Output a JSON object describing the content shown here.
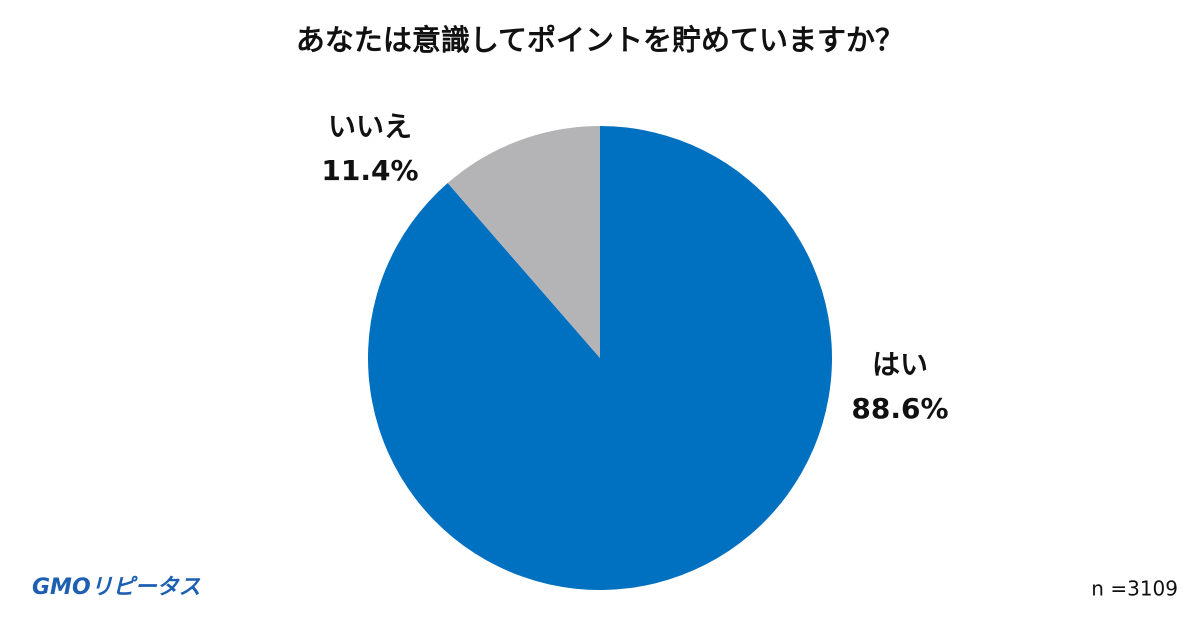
{
  "chart_data": {
    "type": "pie",
    "title": "あなたは意識してポイントを貯めていますか？",
    "categories": [
      "はい",
      "いいえ"
    ],
    "values": [
      88.6,
      11.4
    ],
    "value_labels": [
      "88.6%",
      "11.4%"
    ],
    "colors": [
      "#0070c0",
      "#b4b4b6"
    ],
    "note": "n =3109",
    "logo": "GMOリピータス"
  }
}
